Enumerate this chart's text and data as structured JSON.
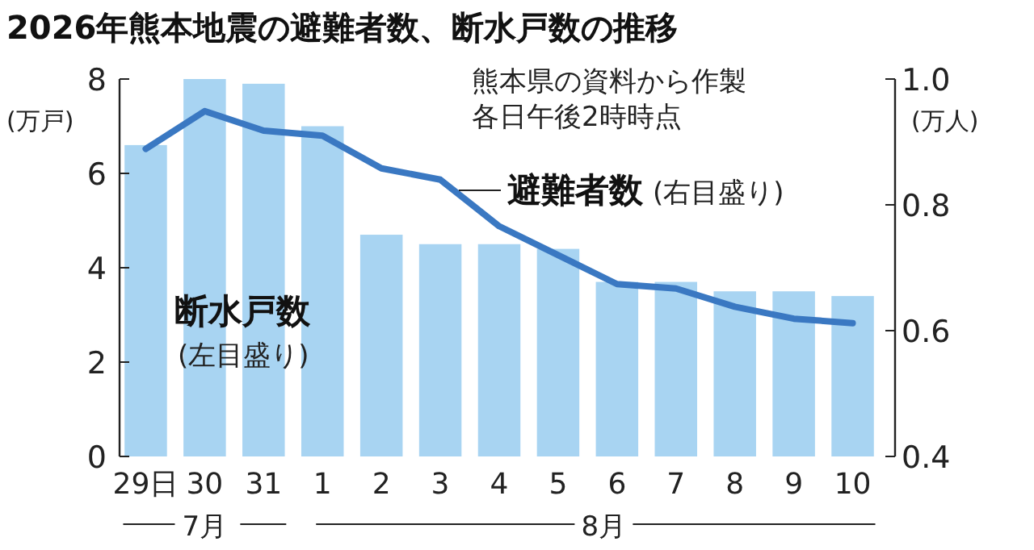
{
  "chart_data": {
    "type": "bar",
    "title": "2026年熊本地震の避難者数、断水戸数の推移",
    "categories": [
      "29日",
      "30",
      "31",
      "1",
      "2",
      "3",
      "4",
      "5",
      "6",
      "7",
      "8",
      "9",
      "10"
    ],
    "series": [
      {
        "name": "断水戸数",
        "color": "#a8d4f2",
        "values": [
          6.6,
          8.0,
          7.9,
          7.0,
          4.7,
          4.5,
          4.5,
          4.4,
          3.7,
          3.7,
          3.5,
          3.5,
          3.4
        ]
      },
      {
        "name": "避難者数",
        "type": "line",
        "axis": "y2",
        "color": "#3a78c2",
        "values": [
          0.889,
          0.949,
          0.918,
          0.91,
          0.858,
          0.84,
          0.766,
          0.72,
          0.674,
          0.667,
          0.638,
          0.619,
          0.612
        ]
      }
    ],
    "ylabel": "(万戸)",
    "y2label": "(万人)",
    "ylim": [
      0,
      8
    ],
    "yticks": [
      0,
      2,
      4,
      6,
      8
    ],
    "y2lim": [
      0.4,
      1.0
    ],
    "y2ticks": [
      {
        "value": 0.4,
        "label": "0.4"
      },
      {
        "value": 0.6,
        "label": "0.6"
      },
      {
        "value": 0.8,
        "label": "0.8"
      },
      {
        "value": 1.0,
        "label": "1.0"
      }
    ],
    "annotations": [
      "熊本県の資料から作製",
      "各日午後2時時点",
      "(右目盛り)",
      "(左目盛り)",
      "7月",
      "8月"
    ],
    "grid": false
  }
}
